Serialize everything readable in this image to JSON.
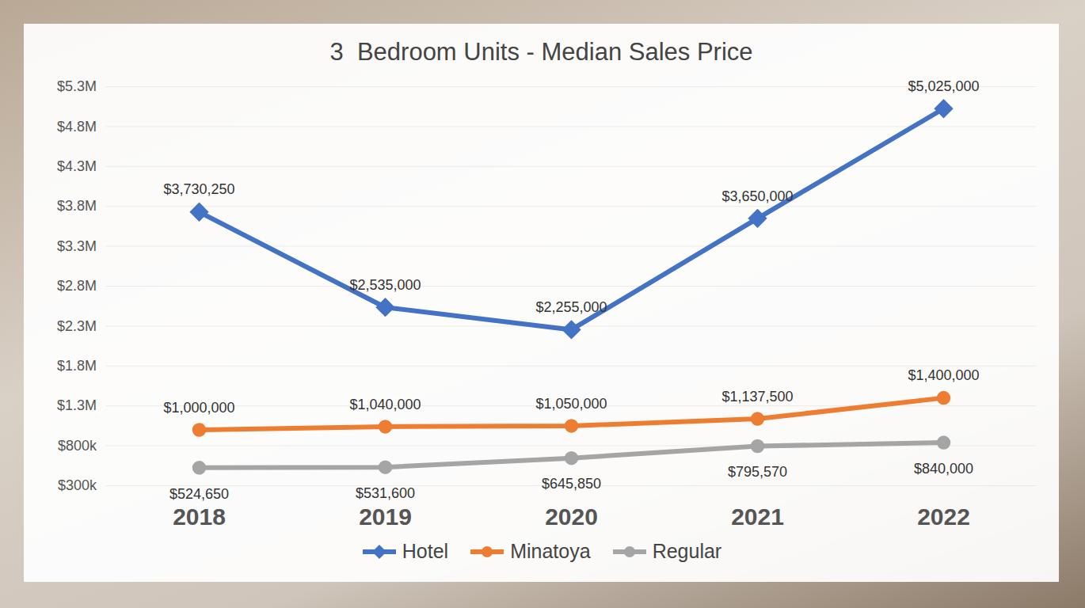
{
  "chart_data": {
    "type": "line",
    "title": "3  Bedroom Units - Median Sales Price",
    "categories": [
      "2018",
      "2019",
      "2020",
      "2021",
      "2022"
    ],
    "series": [
      {
        "name": "Hotel",
        "color": "#4472c4",
        "marker": "diamond",
        "values": [
          3730250,
          2535000,
          2255000,
          3650000,
          5025000
        ],
        "value_labels": [
          "$3,730,250",
          "$2,535,000",
          "$2,255,000",
          "$3,650,000",
          "$5,025,000"
        ]
      },
      {
        "name": "Minatoya",
        "color": "#ed7d31",
        "marker": "circle",
        "values": [
          1000000,
          1040000,
          1050000,
          1137500,
          1400000
        ],
        "value_labels": [
          "$1,000,000",
          "$1,040,000",
          "$1,050,000",
          "$1,137,500",
          "$1,400,000"
        ]
      },
      {
        "name": "Regular",
        "color": "#a5a5a5",
        "marker": "circle",
        "values": [
          524650,
          531600,
          645850,
          795570,
          840000
        ],
        "value_labels": [
          "$524,650",
          "$531,600",
          "$645,850",
          "$795,570",
          "$840,000"
        ]
      }
    ],
    "ylim": [
      300000,
      5300000
    ],
    "yticks": [
      {
        "value": 300000,
        "label": "$300k"
      },
      {
        "value": 800000,
        "label": "$800k"
      },
      {
        "value": 1300000,
        "label": "$1.3M"
      },
      {
        "value": 1800000,
        "label": "$1.8M"
      },
      {
        "value": 2300000,
        "label": "$2.3M"
      },
      {
        "value": 2800000,
        "label": "$2.8M"
      },
      {
        "value": 3300000,
        "label": "$3.3M"
      },
      {
        "value": 3800000,
        "label": "$3.8M"
      },
      {
        "value": 4300000,
        "label": "$4.3M"
      },
      {
        "value": 4800000,
        "label": "$4.8M"
      },
      {
        "value": 5300000,
        "label": "$5.3M"
      }
    ],
    "grid": true,
    "data_labels": true,
    "legend": "bottom"
  }
}
